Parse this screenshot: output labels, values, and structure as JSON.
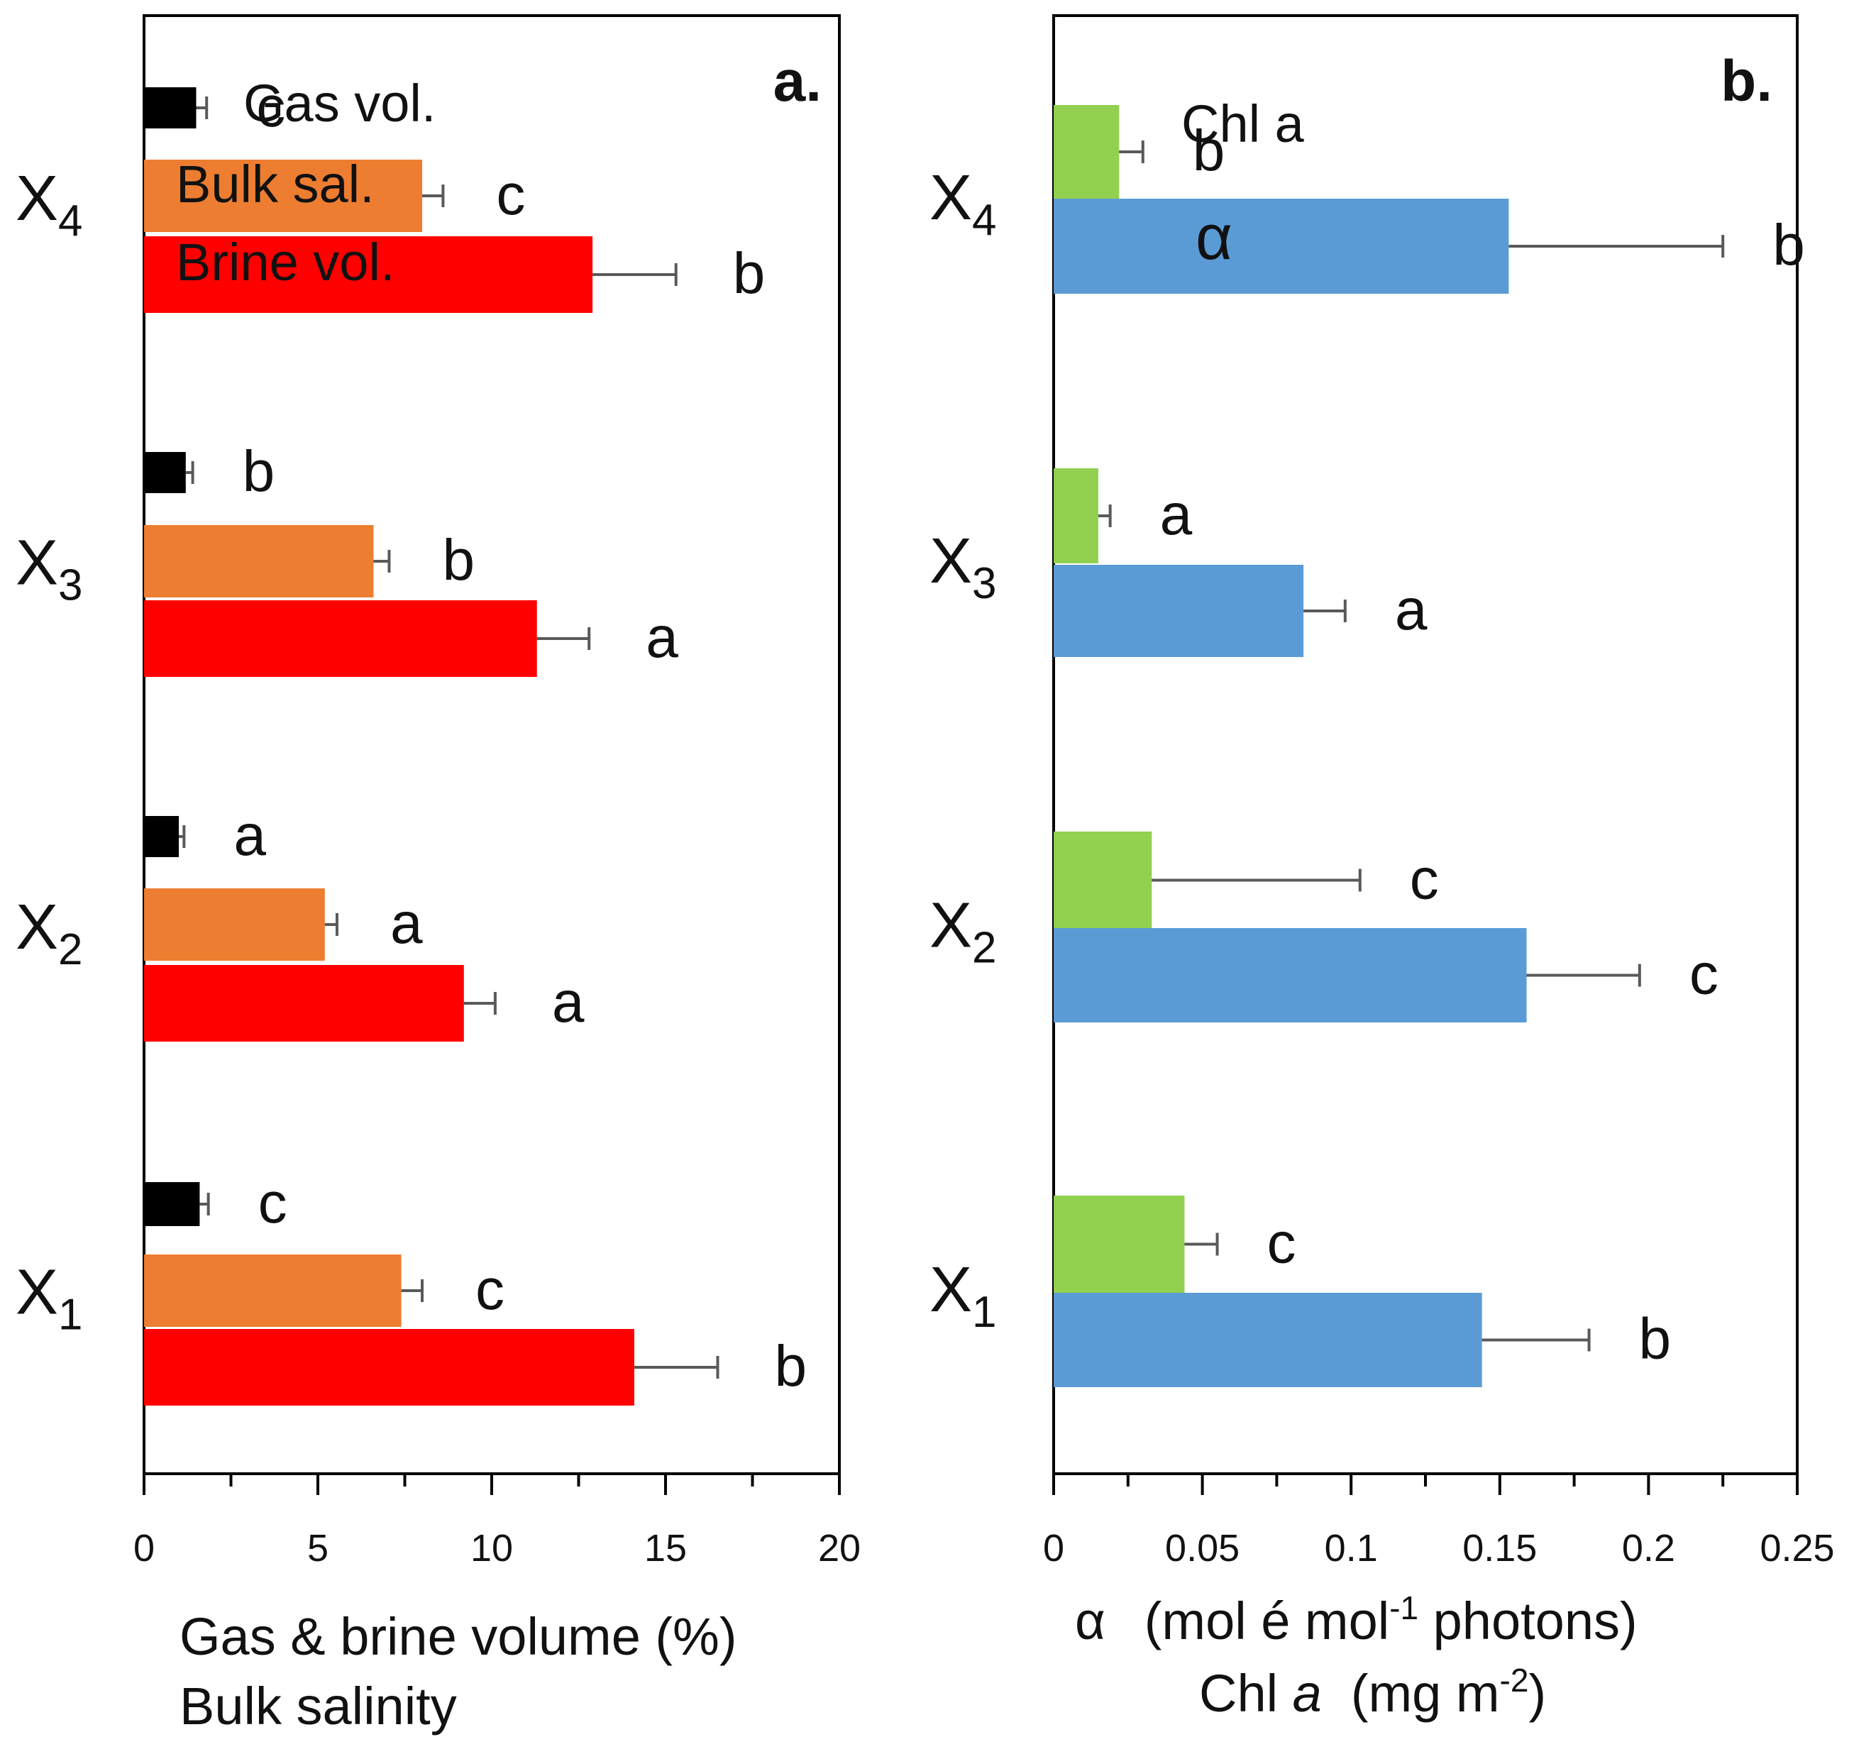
{
  "chart_data": [
    {
      "type": "bar",
      "orientation": "horizontal",
      "panel_label": "a.",
      "categories": [
        {
          "base": "X",
          "sub": "1"
        },
        {
          "base": "X",
          "sub": "2"
        },
        {
          "base": "X",
          "sub": "3"
        },
        {
          "base": "X",
          "sub": "4"
        }
      ],
      "series": [
        {
          "name": "Gas vol.",
          "color": "#000000",
          "values": [
            1.6,
            1.0,
            1.2,
            1.5
          ],
          "errors": [
            0.25,
            0.15,
            0.2,
            0.3
          ],
          "letters": [
            "c",
            "a",
            "b",
            "c"
          ]
        },
        {
          "name": "Bulk sal.",
          "color": "#ED7D31",
          "values": [
            7.4,
            5.2,
            6.6,
            8.0
          ],
          "errors": [
            0.6,
            0.35,
            0.45,
            0.6
          ],
          "letters": [
            "c",
            "a",
            "b",
            "c"
          ]
        },
        {
          "name": "Brine vol.",
          "color": "#FF0000",
          "values": [
            14.1,
            9.2,
            11.3,
            12.9
          ],
          "errors": [
            2.4,
            0.9,
            1.5,
            2.4
          ],
          "letters": [
            "b",
            "a",
            "a",
            "b"
          ]
        }
      ],
      "xlim": [
        0,
        20
      ],
      "xticks": [
        "0",
        "5",
        "10",
        "15",
        "20"
      ],
      "xlabel_lines": [
        "Gas & brine volume (%)",
        "Bulk salinity"
      ],
      "legend": "in-bar labels on X4"
    },
    {
      "type": "bar",
      "orientation": "horizontal",
      "panel_label": "b.",
      "categories": [
        {
          "base": "X",
          "sub": "1"
        },
        {
          "base": "X",
          "sub": "2"
        },
        {
          "base": "X",
          "sub": "3"
        },
        {
          "base": "X",
          "sub": "4"
        }
      ],
      "series": [
        {
          "name": "Chl a",
          "color": "#92D050",
          "values": [
            0.044,
            0.033,
            0.015,
            0.022
          ],
          "errors": [
            0.011,
            0.07,
            0.004,
            0.008
          ],
          "letters": [
            "c",
            "c",
            "a",
            "b"
          ]
        },
        {
          "name": "α",
          "color": "#5B9BD5",
          "values": [
            0.144,
            0.159,
            0.084,
            0.153
          ],
          "errors": [
            0.036,
            0.038,
            0.014,
            0.072
          ],
          "letters": [
            "b",
            "c",
            "a",
            "b"
          ]
        }
      ],
      "xlim": [
        0,
        0.25
      ],
      "xticks": [
        "0",
        "0.05",
        "0.1",
        "0.15",
        "0.2",
        "0.25"
      ],
      "xlabel_line1": {
        "symbol": "α",
        "pre": "(mol é mol",
        "sup": "-1",
        "post": " photons)"
      },
      "xlabel_line2": {
        "pre": "Chl ",
        "italic": "a",
        "mid": "  (mg m",
        "sup": "-2",
        "post": ")"
      },
      "legend": "in-bar labels on X4"
    }
  ]
}
